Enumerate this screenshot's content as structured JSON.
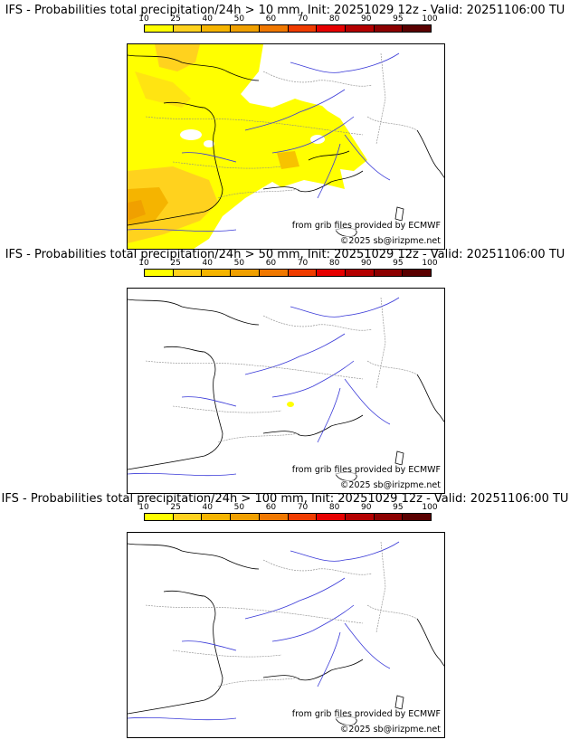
{
  "legend": {
    "ticks": [
      "10",
      "25",
      "40",
      "50",
      "60",
      "70",
      "80",
      "90",
      "95",
      "100"
    ],
    "colors": [
      "#ffff00",
      "#ffd21e",
      "#f5b400",
      "#f0a000",
      "#f07800",
      "#f03c00",
      "#e60000",
      "#b40000",
      "#8c0000",
      "#5a0000"
    ]
  },
  "panels": [
    {
      "title": "IFS - Probabilities total precipitation/24h > 10 mm, Init: 20251029 12z - Valid: 20251106:00 TU"
    },
    {
      "title": "IFS - Probabilities total precipitation/24h > 50 mm, Init: 20251029 12z - Valid: 20251106:00 TU"
    },
    {
      "title": "IFS - Probabilities total precipitation/24h > 100 mm, Init: 20251029 12z - Valid: 20251106:00 TU"
    }
  ],
  "source_text": "from grib files provided by ECMWF",
  "copyright": "©2025 sb@irizpme.net",
  "colors": {
    "river": "#3a3ad8",
    "border": "#8a8a8a",
    "coast": "#000000"
  }
}
